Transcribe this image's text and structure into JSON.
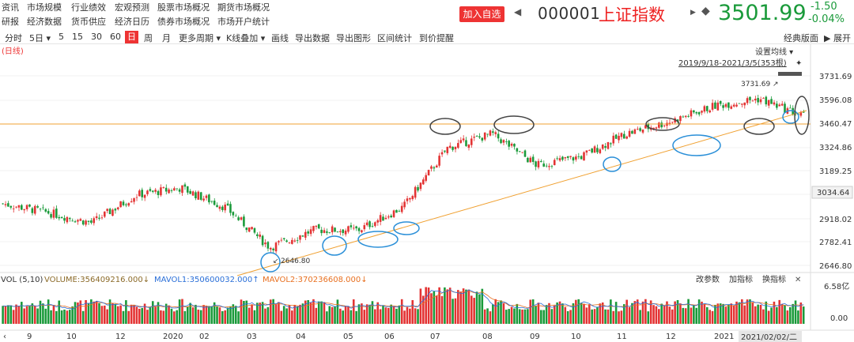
{
  "nav": {
    "row1": [
      "资讯",
      "市场规模",
      "行业绩效",
      "宏观预测",
      "股票市场概况",
      "期货市场概况"
    ],
    "row2": [
      "研报",
      "经济数据",
      "货币供应",
      "经济日历",
      "债券市场概况",
      "市场开户统计"
    ]
  },
  "header": {
    "add_fav": "加入自选",
    "prev_icon": "◀",
    "next_icon": "▶",
    "code": "000001",
    "name": "上证指数",
    "price": "3501.99",
    "change": "-1.50",
    "change_pct": "-0.04%",
    "colors": {
      "up": "#e33333",
      "down": "#1a9a3a"
    }
  },
  "toolbar": {
    "items": [
      "分时",
      "5日 ▾",
      "5",
      "15",
      "30",
      "60",
      "日",
      "周",
      "月",
      "更多周期 ▾",
      "K线叠加 ▾",
      "画线",
      "导出数据",
      "导出图形",
      "区间统计",
      "到价提醒"
    ],
    "active": "日",
    "right_items": [
      "经典版面",
      "▶ 展开"
    ]
  },
  "chart": {
    "period_label": "(日线)",
    "settings_label": "设置均线 ▾",
    "range_label": "2019/9/18-2021/3/5(353根)",
    "high_label": "3731.69",
    "low_label": "2646.80",
    "price_axis": [
      "3731.69",
      "3596.08",
      "3460.47",
      "3324.86",
      "3189.25",
      "3034.64",
      "2918.02",
      "2782.41",
      "2646.80"
    ],
    "crosshair_value": "3034.64",
    "volume": {
      "vol_label": "VOL (5,10)",
      "volume": "VOLUME:356409216.000↓",
      "mavol1": "MAVOL1:350600032.000↑",
      "mavol2": "MAVOL2:370236608.000↓",
      "buttons": [
        "改参数",
        "加指标",
        "换指标"
      ],
      "close_icon": "✕",
      "axis_top": "6.58亿",
      "axis_bottom": "0.00"
    },
    "date_axis": [
      "9",
      "10",
      "11",
      "12",
      "2020",
      "02",
      "03",
      "04",
      "05",
      "06",
      "07",
      "08",
      "09",
      "10",
      "11",
      "12",
      "2021"
    ],
    "date_highlight": "2021/02/02/二"
  },
  "chart_data": {
    "type": "candlestick",
    "ylim": [
      2646.8,
      3731.69
    ],
    "bars": 353,
    "approx_close_path": [
      {
        "date": "2019-09",
        "close": 3000
      },
      {
        "date": "2019-10",
        "close": 2950
      },
      {
        "date": "2019-11",
        "close": 2890
      },
      {
        "date": "2019-12",
        "close": 3050
      },
      {
        "date": "2020-01",
        "close": 3090
      },
      {
        "date": "2020-02",
        "close": 2980
      },
      {
        "date": "2020-03",
        "close": 2750
      },
      {
        "date": "2020-04",
        "close": 2850
      },
      {
        "date": "2020-05",
        "close": 2850
      },
      {
        "date": "2020-06",
        "close": 2980
      },
      {
        "date": "2020-07",
        "close": 3320
      },
      {
        "date": "2020-08",
        "close": 3400
      },
      {
        "date": "2020-09",
        "close": 3220
      },
      {
        "date": "2020-10",
        "close": 3270
      },
      {
        "date": "2020-11",
        "close": 3400
      },
      {
        "date": "2020-12",
        "close": 3470
      },
      {
        "date": "2021-01",
        "close": 3560
      },
      {
        "date": "2021-02",
        "close": 3600
      },
      {
        "date": "2021-03",
        "close": 3501.99
      }
    ]
  }
}
